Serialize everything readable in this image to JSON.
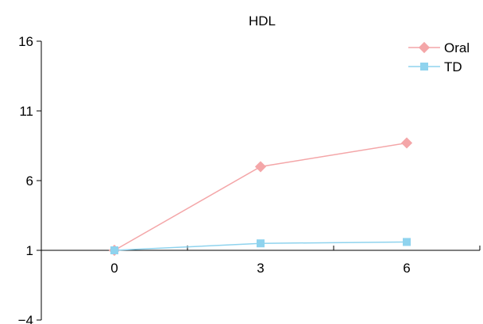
{
  "chart_data": {
    "type": "line",
    "title": "HDL",
    "xlabel": "",
    "ylabel": "",
    "categories": [
      "0",
      "3",
      "6"
    ],
    "x": [
      0,
      3,
      6
    ],
    "xlim": [
      -1.5,
      7.5
    ],
    "ylim": [
      -4,
      16
    ],
    "yticks": [
      -4,
      1,
      6,
      11,
      16
    ],
    "y_tick_labels": [
      "−4",
      "1",
      "6",
      "11",
      "16"
    ],
    "x_tick_labels": [
      "0",
      "3",
      "6"
    ],
    "legend_position": "top-right",
    "grid": false,
    "series": [
      {
        "name": "Oral",
        "values": [
          1.0,
          7.0,
          8.7
        ],
        "color": "#f4a6a8",
        "marker": "diamond"
      },
      {
        "name": "TD",
        "values": [
          1.0,
          1.5,
          1.6
        ],
        "color": "#8fd3ee",
        "marker": "square"
      }
    ]
  }
}
